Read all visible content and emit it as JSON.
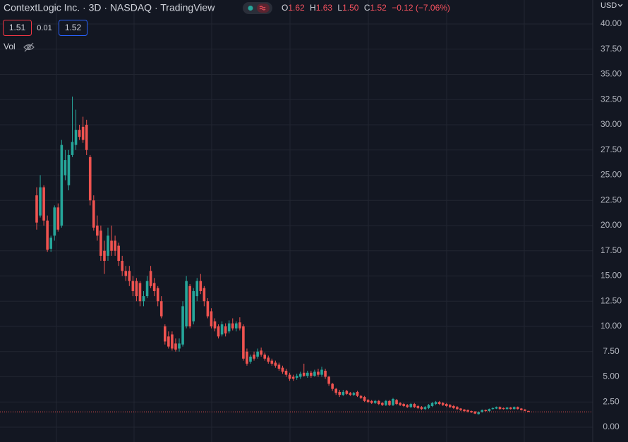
{
  "header": {
    "title": "ContextLogic Inc. · 3D · NASDAQ · TradingView",
    "ohlc": [
      {
        "label": "O",
        "value": "1.62"
      },
      {
        "label": "H",
        "value": "1.63"
      },
      {
        "label": "L",
        "value": "1.50"
      },
      {
        "label": "C",
        "value": "1.52"
      }
    ],
    "change": "−0.12 (−7.06%)",
    "sell_price": "1.51",
    "spread": "0.01",
    "buy_price": "1.52",
    "volume_label": "Vol",
    "currency": "USD"
  },
  "chart_data": {
    "type": "candlestick",
    "up_color": "#26a69a",
    "down_color": "#ef5350",
    "ylim": [
      -1.47,
      42.38
    ],
    "yticks": [
      {
        "value": 0,
        "label": "0.00"
      },
      {
        "value": 2.5,
        "label": "2.50"
      },
      {
        "value": 5,
        "label": "5.00"
      },
      {
        "value": 7.5,
        "label": "7.50"
      },
      {
        "value": 10,
        "label": "10.00"
      },
      {
        "value": 12.5,
        "label": "12.50"
      },
      {
        "value": 15,
        "label": "15.00"
      },
      {
        "value": 17.5,
        "label": "17.50"
      },
      {
        "value": 20,
        "label": "20.00"
      },
      {
        "value": 22.5,
        "label": "22.50"
      },
      {
        "value": 25,
        "label": "25.00"
      },
      {
        "value": 27.5,
        "label": "27.50"
      },
      {
        "value": 30,
        "label": "30.00"
      },
      {
        "value": 32.5,
        "label": "32.50"
      },
      {
        "value": 35,
        "label": "35.00"
      },
      {
        "value": 37.5,
        "label": "37.50"
      },
      {
        "value": 40,
        "label": "40.00"
      }
    ],
    "grid": true,
    "candles": [
      {
        "open": 23,
        "high": 23.8,
        "low": 19.6,
        "close": 20.3
      },
      {
        "open": 21,
        "high": 25,
        "low": 20.8,
        "close": 23.8
      },
      {
        "open": 23.8,
        "high": 24,
        "low": 20,
        "close": 20.5
      },
      {
        "open": 20.5,
        "high": 21,
        "low": 17.4,
        "close": 17.6
      },
      {
        "open": 17.7,
        "high": 19,
        "low": 17.4,
        "close": 18.8
      },
      {
        "open": 19,
        "high": 22,
        "low": 18.5,
        "close": 21.8
      },
      {
        "open": 21.8,
        "high": 22.2,
        "low": 19.4,
        "close": 19.6
      },
      {
        "open": 20,
        "high": 28.5,
        "low": 19.8,
        "close": 28
      },
      {
        "open": 25,
        "high": 27.5,
        "low": 24.5,
        "close": 26.5
      },
      {
        "open": 24,
        "high": 27.5,
        "low": 23.5,
        "close": 27
      },
      {
        "open": 27,
        "high": 32.8,
        "low": 26.8,
        "close": 28.3
      },
      {
        "open": 28,
        "high": 31.5,
        "low": 27.5,
        "close": 29.5
      },
      {
        "open": 29.5,
        "high": 30,
        "low": 28.5,
        "close": 28.8
      },
      {
        "open": 29.8,
        "high": 30.8,
        "low": 28.2,
        "close": 28.5
      },
      {
        "open": 30,
        "high": 30.5,
        "low": 27,
        "close": 27.5
      },
      {
        "open": 26.8,
        "high": 27,
        "low": 22,
        "close": 22.5
      },
      {
        "open": 22.5,
        "high": 23,
        "low": 19.5,
        "close": 19.8
      },
      {
        "open": 20,
        "high": 21,
        "low": 18.5,
        "close": 19
      },
      {
        "open": 19.5,
        "high": 20,
        "low": 16.5,
        "close": 17
      },
      {
        "open": 17.5,
        "high": 18.5,
        "low": 15.2,
        "close": 16.5
      },
      {
        "open": 17,
        "high": 19.8,
        "low": 16.5,
        "close": 19
      },
      {
        "open": 18.5,
        "high": 20,
        "low": 17,
        "close": 17.5
      },
      {
        "open": 18.5,
        "high": 19,
        "low": 17,
        "close": 17.5
      },
      {
        "open": 18,
        "high": 18.3,
        "low": 16,
        "close": 16.5
      },
      {
        "open": 16.5,
        "high": 17,
        "low": 15,
        "close": 15.5
      },
      {
        "open": 15.5,
        "high": 16,
        "low": 14.5,
        "close": 15
      },
      {
        "open": 15.5,
        "high": 16,
        "low": 14,
        "close": 14.5
      },
      {
        "open": 14.5,
        "high": 15,
        "low": 13,
        "close": 13.5
      },
      {
        "open": 14.5,
        "high": 14.8,
        "low": 12.5,
        "close": 13
      },
      {
        "open": 14.3,
        "high": 14.5,
        "low": 12,
        "close": 12.5
      },
      {
        "open": 12.5,
        "high": 13.5,
        "low": 12,
        "close": 13
      },
      {
        "open": 13,
        "high": 15,
        "low": 12.8,
        "close": 14.5
      },
      {
        "open": 15.5,
        "high": 16,
        "low": 13.8,
        "close": 14
      },
      {
        "open": 14.3,
        "high": 14.8,
        "low": 13,
        "close": 13.5
      },
      {
        "open": 13.8,
        "high": 14,
        "low": 12,
        "close": 12.5
      },
      {
        "open": 12.5,
        "high": 13,
        "low": 10.8,
        "close": 11
      },
      {
        "open": 10,
        "high": 10.2,
        "low": 8.2,
        "close": 8.5
      },
      {
        "open": 9,
        "high": 9.5,
        "low": 7.8,
        "close": 8
      },
      {
        "open": 9.2,
        "high": 9.5,
        "low": 7.6,
        "close": 7.8
      },
      {
        "open": 8.3,
        "high": 8.8,
        "low": 7.5,
        "close": 7.7
      },
      {
        "open": 7.8,
        "high": 8.8,
        "low": 7.5,
        "close": 8.3
      },
      {
        "open": 8.2,
        "high": 12.5,
        "low": 8,
        "close": 12
      },
      {
        "open": 10,
        "high": 15,
        "low": 9.8,
        "close": 14.5
      },
      {
        "open": 14,
        "high": 14.2,
        "low": 9.8,
        "close": 10
      },
      {
        "open": 10.5,
        "high": 13.8,
        "low": 10.2,
        "close": 13.5
      },
      {
        "open": 13,
        "high": 14.8,
        "low": 12.5,
        "close": 14.5
      },
      {
        "open": 14.5,
        "high": 15.2,
        "low": 13.2,
        "close": 13.5
      },
      {
        "open": 13.8,
        "high": 14,
        "low": 12,
        "close": 12.5
      },
      {
        "open": 12.5,
        "high": 12.8,
        "low": 10.8,
        "close": 11
      },
      {
        "open": 11.5,
        "high": 11.8,
        "low": 9.8,
        "close": 10
      },
      {
        "open": 10.5,
        "high": 10.8,
        "low": 9.5,
        "close": 9.8
      },
      {
        "open": 10,
        "high": 10.2,
        "low": 8.8,
        "close": 9
      },
      {
        "open": 9.2,
        "high": 10.5,
        "low": 9,
        "close": 10.2
      },
      {
        "open": 10,
        "high": 10.3,
        "low": 9,
        "close": 9.3
      },
      {
        "open": 9.5,
        "high": 10.6,
        "low": 9.3,
        "close": 10.3
      },
      {
        "open": 10.3,
        "high": 10.8,
        "low": 9.6,
        "close": 9.8
      },
      {
        "open": 9.8,
        "high": 10.5,
        "low": 9.5,
        "close": 10.3
      },
      {
        "open": 10.4,
        "high": 10.9,
        "low": 9.6,
        "close": 9.8
      },
      {
        "open": 10,
        "high": 10.2,
        "low": 6.6,
        "close": 6.8
      },
      {
        "open": 7.5,
        "high": 7.8,
        "low": 6.1,
        "close": 6.3
      },
      {
        "open": 6.5,
        "high": 7.2,
        "low": 6.3,
        "close": 7
      },
      {
        "open": 7.2,
        "high": 7.5,
        "low": 6.6,
        "close": 6.8
      },
      {
        "open": 7,
        "high": 7.8,
        "low": 6.8,
        "close": 7.5
      },
      {
        "open": 7.6,
        "high": 7.9,
        "low": 7,
        "close": 7.2
      },
      {
        "open": 7.2,
        "high": 7.4,
        "low": 6.6,
        "close": 6.8
      },
      {
        "open": 6.9,
        "high": 7.1,
        "low": 6.3,
        "close": 6.5
      },
      {
        "open": 6.6,
        "high": 6.8,
        "low": 6.1,
        "close": 6.3
      },
      {
        "open": 6.4,
        "high": 6.6,
        "low": 5.9,
        "close": 6.1
      },
      {
        "open": 6.2,
        "high": 6.4,
        "low": 5.6,
        "close": 5.8
      },
      {
        "open": 5.9,
        "high": 6.1,
        "low": 5.3,
        "close": 5.5
      },
      {
        "open": 5.6,
        "high": 5.8,
        "low": 5,
        "close": 5.2
      },
      {
        "open": 5.2,
        "high": 5.4,
        "low": 4.6,
        "close": 4.8
      },
      {
        "open": 5,
        "high": 5.2,
        "low": 4.6,
        "close": 4.8
      },
      {
        "open": 4.9,
        "high": 5.3,
        "low": 4.7,
        "close": 5.1
      },
      {
        "open": 5,
        "high": 5.5,
        "low": 4.8,
        "close": 5.3
      },
      {
        "open": 5.4,
        "high": 6.3,
        "low": 5,
        "close": 5.1
      },
      {
        "open": 5.1,
        "high": 5.6,
        "low": 4.9,
        "close": 5.4
      },
      {
        "open": 5.4,
        "high": 5.6,
        "low": 4.9,
        "close": 5.1
      },
      {
        "open": 5.1,
        "high": 5.7,
        "low": 5,
        "close": 5.5
      },
      {
        "open": 5.5,
        "high": 5.8,
        "low": 5,
        "close": 5.2
      },
      {
        "open": 5.2,
        "high": 6,
        "low": 5,
        "close": 5.7
      },
      {
        "open": 5.6,
        "high": 5.8,
        "low": 4.8,
        "close": 5
      },
      {
        "open": 5,
        "high": 5.1,
        "low": 4.1,
        "close": 4.3
      },
      {
        "open": 4.3,
        "high": 4.4,
        "low": 3.6,
        "close": 3.8
      },
      {
        "open": 3.8,
        "high": 3.9,
        "low": 3.2,
        "close": 3.4
      },
      {
        "open": 3.5,
        "high": 3.7,
        "low": 3,
        "close": 3.2
      },
      {
        "open": 3.2,
        "high": 3.7,
        "low": 3.1,
        "close": 3.5
      },
      {
        "open": 3.6,
        "high": 3.7,
        "low": 3.2,
        "close": 3.3
      },
      {
        "open": 3.4,
        "high": 3.5,
        "low": 3.1,
        "close": 3.2
      },
      {
        "open": 3.2,
        "high": 3.5,
        "low": 3.1,
        "close": 3.4
      },
      {
        "open": 3.5,
        "high": 3.6,
        "low": 3,
        "close": 3.1
      },
      {
        "open": 3.1,
        "high": 3.2,
        "low": 2.8,
        "close": 2.9
      },
      {
        "open": 3,
        "high": 3.1,
        "low": 2.5,
        "close": 2.6
      },
      {
        "open": 2.7,
        "high": 2.8,
        "low": 2.4,
        "close": 2.5
      },
      {
        "open": 2.6,
        "high": 2.7,
        "low": 2.3,
        "close": 2.4
      },
      {
        "open": 2.4,
        "high": 2.7,
        "low": 2.3,
        "close": 2.6
      },
      {
        "open": 2.6,
        "high": 2.7,
        "low": 2.2,
        "close": 2.3
      },
      {
        "open": 2.4,
        "high": 2.5,
        "low": 2.1,
        "close": 2.2
      },
      {
        "open": 2.2,
        "high": 2.7,
        "low": 2.1,
        "close": 2.6
      },
      {
        "open": 2.6,
        "high": 2.7,
        "low": 2.1,
        "close": 2.2
      },
      {
        "open": 2.2,
        "high": 2.9,
        "low": 2.1,
        "close": 2.8
      },
      {
        "open": 2.7,
        "high": 2.8,
        "low": 2.2,
        "close": 2.3
      },
      {
        "open": 2.4,
        "high": 2.5,
        "low": 2.1,
        "close": 2.2
      },
      {
        "open": 2.3,
        "high": 2.4,
        "low": 2,
        "close": 2.1
      },
      {
        "open": 2.2,
        "high": 2.3,
        "low": 1.9,
        "close": 2
      },
      {
        "open": 2,
        "high": 2.4,
        "low": 1.9,
        "close": 2.3
      },
      {
        "open": 2.3,
        "high": 2.4,
        "low": 1.9,
        "close": 2
      },
      {
        "open": 2.1,
        "high": 2.2,
        "low": 1.8,
        "close": 1.9
      },
      {
        "open": 2,
        "high": 2.1,
        "low": 1.7,
        "close": 1.8
      },
      {
        "open": 1.8,
        "high": 2.1,
        "low": 1.7,
        "close": 2
      },
      {
        "open": 1.9,
        "high": 2.3,
        "low": 1.8,
        "close": 2.2
      },
      {
        "open": 2.1,
        "high": 2.5,
        "low": 2,
        "close": 2.4
      },
      {
        "open": 2.3,
        "high": 2.6,
        "low": 2.2,
        "close": 2.5
      },
      {
        "open": 2.5,
        "high": 2.6,
        "low": 2.2,
        "close": 2.3
      },
      {
        "open": 2.4,
        "high": 2.5,
        "low": 2.1,
        "close": 2.2
      },
      {
        "open": 2.3,
        "high": 2.4,
        "low": 2,
        "close": 2.1
      },
      {
        "open": 2.2,
        "high": 2.3,
        "low": 1.9,
        "close": 2
      },
      {
        "open": 2.1,
        "high": 2.2,
        "low": 1.8,
        "close": 1.9
      },
      {
        "open": 2,
        "high": 2.1,
        "low": 1.7,
        "close": 1.8
      },
      {
        "open": 1.85,
        "high": 1.9,
        "low": 1.6,
        "close": 1.7
      },
      {
        "open": 1.75,
        "high": 1.8,
        "low": 1.5,
        "close": 1.6
      },
      {
        "open": 1.7,
        "high": 1.75,
        "low": 1.45,
        "close": 1.55
      },
      {
        "open": 1.6,
        "high": 1.65,
        "low": 1.4,
        "close": 1.5
      },
      {
        "open": 1.55,
        "high": 1.6,
        "low": 1.3,
        "close": 1.35
      },
      {
        "open": 1.3,
        "high": 1.55,
        "low": 1.25,
        "close": 1.5
      },
      {
        "open": 1.5,
        "high": 1.75,
        "low": 1.45,
        "close": 1.7
      },
      {
        "open": 1.7,
        "high": 1.75,
        "low": 1.55,
        "close": 1.6
      },
      {
        "open": 1.6,
        "high": 1.85,
        "low": 1.55,
        "close": 1.8
      },
      {
        "open": 1.8,
        "high": 1.95,
        "low": 1.75,
        "close": 1.9
      },
      {
        "open": 1.85,
        "high": 2.05,
        "low": 1.8,
        "close": 2
      },
      {
        "open": 2,
        "high": 2.05,
        "low": 1.75,
        "close": 1.8
      },
      {
        "open": 1.9,
        "high": 1.95,
        "low": 1.75,
        "close": 1.8
      },
      {
        "open": 1.8,
        "high": 2,
        "low": 1.75,
        "close": 1.95
      },
      {
        "open": 1.95,
        "high": 2,
        "low": 1.75,
        "close": 1.8
      },
      {
        "open": 1.8,
        "high": 2.05,
        "low": 1.75,
        "close": 2
      },
      {
        "open": 2,
        "high": 2.05,
        "low": 1.75,
        "close": 1.8
      },
      {
        "open": 1.85,
        "high": 1.9,
        "low": 1.65,
        "close": 1.7
      },
      {
        "open": 1.75,
        "high": 1.8,
        "low": 1.6,
        "close": 1.62
      },
      {
        "open": 1.62,
        "high": 1.63,
        "low": 1.5,
        "close": 1.52
      }
    ]
  }
}
